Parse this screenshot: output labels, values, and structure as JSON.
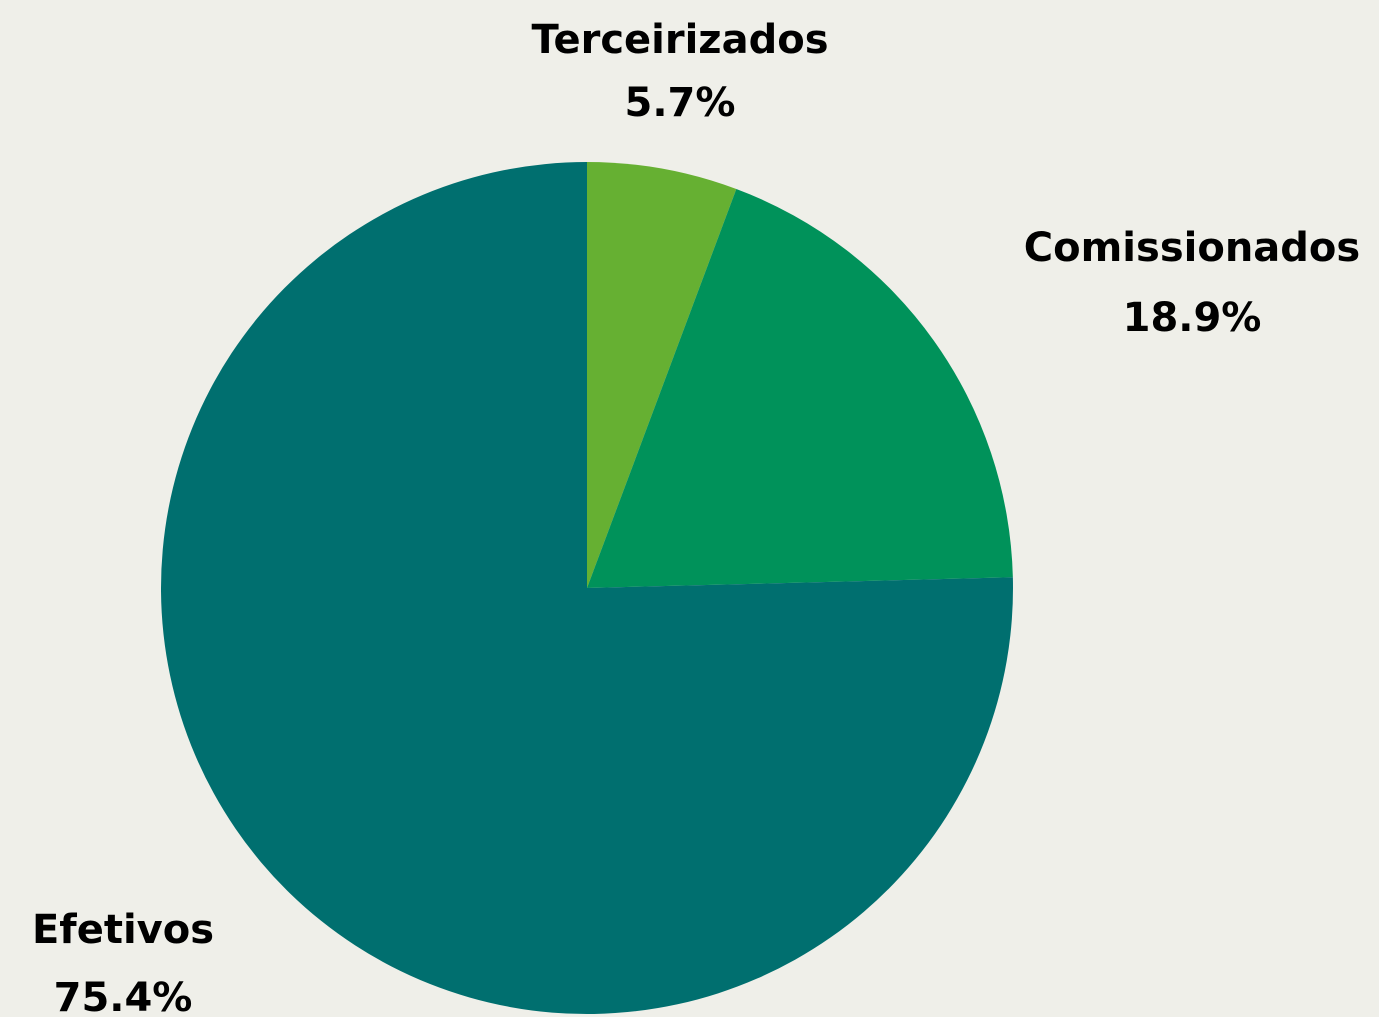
{
  "chart_data": {
    "type": "pie",
    "categories": [
      "Terceirizados",
      "Comissionados",
      "Efetivos"
    ],
    "values": [
      5.7,
      18.9,
      75.4
    ],
    "value_labels": [
      "5.7%",
      "18.9%",
      "75.4%"
    ],
    "colors": [
      "#66b032",
      "#00925a",
      "#006f6f"
    ]
  }
}
